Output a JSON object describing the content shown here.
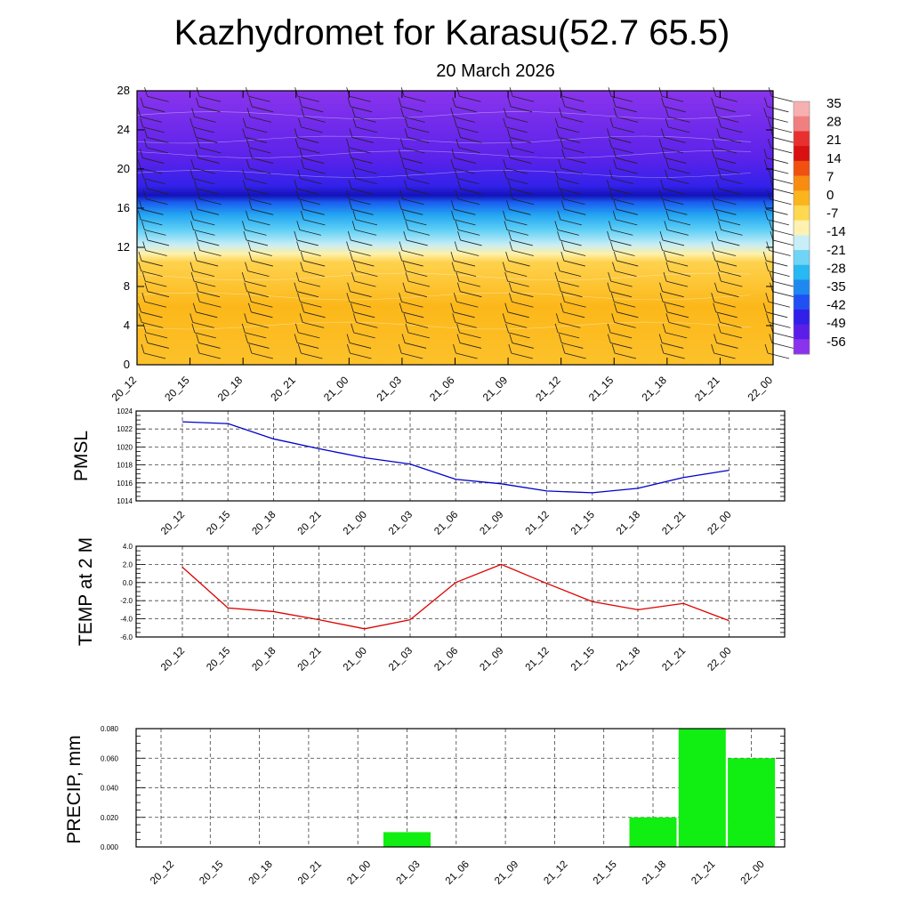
{
  "title": "Kazhydromet for Karasu(52.7 65.5)",
  "subtitle": "20 March 2026",
  "time_labels": [
    "20_12",
    "20_15",
    "20_18",
    "20_21",
    "21_00",
    "21_03",
    "21_06",
    "21_09",
    "21_12",
    "21_15",
    "21_18",
    "21_21",
    "22_00"
  ],
  "chart_data": [
    {
      "type": "heatmap",
      "name": "temperature-cross-section",
      "x": [
        "20_12",
        "20_15",
        "20_18",
        "20_21",
        "21_00",
        "21_03",
        "21_06",
        "21_09",
        "21_12",
        "21_15",
        "21_18",
        "21_21",
        "22_00"
      ],
      "y_ticks": [
        "0",
        "4",
        "8",
        "12",
        "16",
        "20",
        "24",
        "28"
      ],
      "ylim": [
        0,
        28
      ],
      "colorbar_labels": [
        "35",
        "28",
        "21",
        "14",
        "7",
        "0",
        "-7",
        "-14",
        "-21",
        "-28",
        "-35",
        "-42",
        "-49",
        "-56"
      ],
      "colorbar_colors": [
        "#f7b0b0",
        "#f08080",
        "#e83030",
        "#d81010",
        "#f05010",
        "#f88c10",
        "#fcb41c",
        "#fed850",
        "#fff2b0",
        "#c8eef8",
        "#70d4f6",
        "#28b8f2",
        "#1e88f0",
        "#2050f4",
        "#3020e8",
        "#5a1ee8",
        "#8a32ec"
      ],
      "band_stops": [
        {
          "h": 0,
          "color": "#fcc12a"
        },
        {
          "h": 6,
          "color": "#fcb81a"
        },
        {
          "h": 10.5,
          "color": "#fed24e"
        },
        {
          "h": 11.3,
          "color": "#fff0a6"
        },
        {
          "h": 12.3,
          "color": "#c6edf6"
        },
        {
          "h": 13.8,
          "color": "#5ecff6"
        },
        {
          "h": 15.3,
          "color": "#24a6f1"
        },
        {
          "h": 16.6,
          "color": "#1a5cf0"
        },
        {
          "h": 17.3,
          "color": "#1412b8"
        },
        {
          "h": 18.3,
          "color": "#3322ea"
        },
        {
          "h": 21,
          "color": "#5a22ea"
        },
        {
          "h": 28,
          "color": "#8a34ec"
        }
      ]
    },
    {
      "type": "line",
      "name": "PMSL",
      "ylabel": "PMSL",
      "x": [
        "20_12",
        "20_15",
        "20_18",
        "20_21",
        "21_00",
        "21_03",
        "21_06",
        "21_09",
        "21_12",
        "21_15",
        "21_18",
        "21_21",
        "22_00"
      ],
      "values": [
        1022.8,
        1022.6,
        1020.9,
        1019.8,
        1018.8,
        1018.1,
        1016.4,
        1015.9,
        1015.1,
        1014.9,
        1015.4,
        1016.6,
        1017.4
      ],
      "ylim": [
        1014,
        1024
      ],
      "y_ticks": [
        "1014",
        "1016",
        "1018",
        "1020",
        "1022",
        "1024"
      ],
      "color": "#0000cc"
    },
    {
      "type": "line",
      "name": "TEMP at 2 M",
      "ylabel": "TEMP at 2 M",
      "x": [
        "20_12",
        "20_15",
        "20_18",
        "20_21",
        "21_00",
        "21_03",
        "21_06",
        "21_09",
        "21_12",
        "21_15",
        "21_18",
        "21_21",
        "22_00"
      ],
      "values": [
        1.7,
        -2.8,
        -3.2,
        -4.1,
        -5.1,
        -4.1,
        0.0,
        2.0,
        -0.1,
        -2.1,
        -3.0,
        -2.3,
        -4.2
      ],
      "ylim": [
        -6,
        4
      ],
      "y_ticks": [
        "-6.0",
        "-4.0",
        "-2.0",
        "0.0",
        "2.0",
        "4.0"
      ],
      "color": "#dd0000"
    },
    {
      "type": "bar",
      "name": "PRECIP, mm",
      "ylabel": "PRECIP, mm",
      "categories": [
        "20_12",
        "20_15",
        "20_18",
        "20_21",
        "21_00",
        "21_03",
        "21_06",
        "21_09",
        "21_12",
        "21_15",
        "21_18",
        "21_21",
        "22_00"
      ],
      "values": [
        0,
        0,
        0,
        0,
        0,
        0.01,
        0,
        0,
        0,
        0,
        0.02,
        0.08,
        0.06
      ],
      "ylim": [
        0,
        0.08
      ],
      "y_ticks": [
        "0.000",
        "0.020",
        "0.040",
        "0.060",
        "0.080"
      ],
      "color": "#11ee11"
    }
  ]
}
